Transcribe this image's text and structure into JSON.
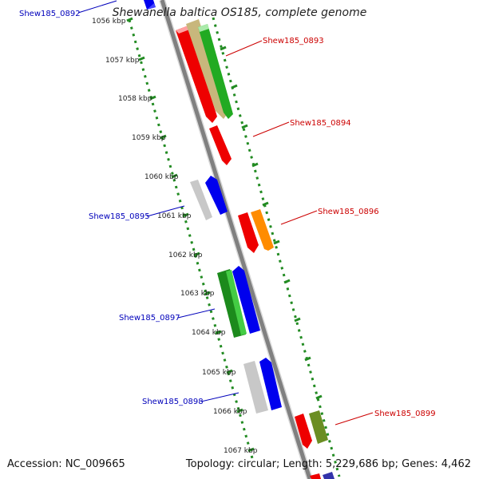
{
  "title": "Shewanella baltica OS185, complete genome",
  "footer": {
    "accession": "Accession: NC_009665",
    "summary": "Topology: circular; Length: 5,229,686 bp; Genes: 4,462"
  },
  "colors": {
    "backbone": "#808080",
    "tick": "#228B22",
    "forward_label": "#cc0000",
    "reverse_label": "#0000bb"
  },
  "ticks": [
    {
      "kbp": 1056,
      "label": "1056 kbp"
    },
    {
      "kbp": 1057,
      "label": "1057 kbp"
    },
    {
      "kbp": 1058,
      "label": "1058 kbp"
    },
    {
      "kbp": 1059,
      "label": "1059 kbp"
    },
    {
      "kbp": 1060,
      "label": "1060 kbp"
    },
    {
      "kbp": 1061,
      "label": "1061 kbp"
    },
    {
      "kbp": 1062,
      "label": "1062 kbp"
    },
    {
      "kbp": 1063,
      "label": "1063 kbp"
    },
    {
      "kbp": 1064,
      "label": "1064 kbp"
    },
    {
      "kbp": 1065,
      "label": "1065 kbp"
    },
    {
      "kbp": 1066,
      "label": "1066 kbp"
    },
    {
      "kbp": 1067,
      "label": "1067 kbp"
    }
  ],
  "gene_labels": [
    {
      "text": "Shew185_0892",
      "strand": "reverse"
    },
    {
      "text": "Shew185_0893",
      "strand": "forward"
    },
    {
      "text": "Shew185_0894",
      "strand": "forward"
    },
    {
      "text": "Shew185_0895",
      "strand": "reverse"
    },
    {
      "text": "Shew185_0896",
      "strand": "forward"
    },
    {
      "text": "Shew185_0897",
      "strand": "reverse"
    },
    {
      "text": "Shew185_0898",
      "strand": "reverse"
    },
    {
      "text": "Shew185_0899",
      "strand": "forward"
    }
  ]
}
